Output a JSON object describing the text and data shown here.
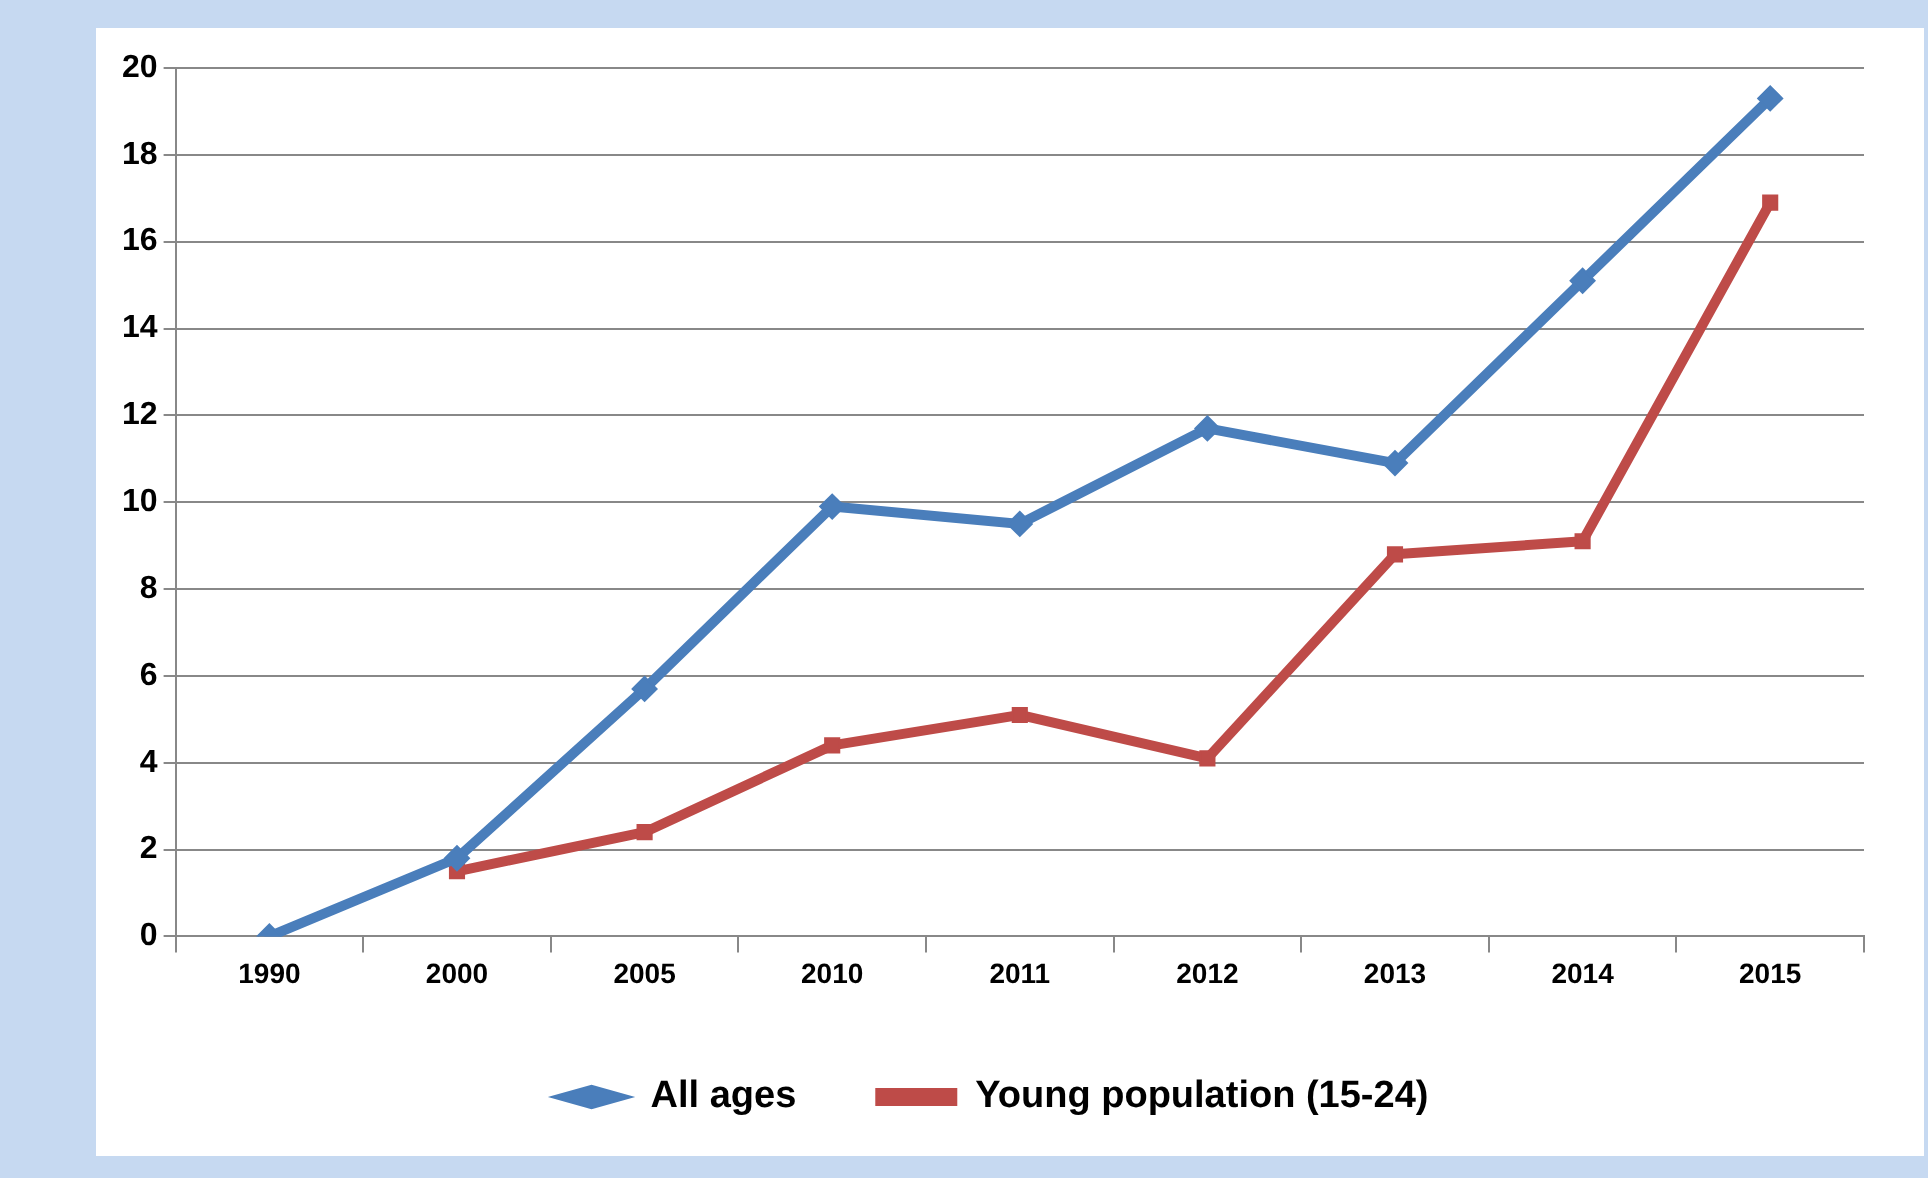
{
  "chart_data": {
    "type": "line",
    "categories": [
      "1990",
      "2000",
      "2005",
      "2010",
      "2011",
      "2012",
      "2013",
      "2014",
      "2015"
    ],
    "series": [
      {
        "name": "All ages",
        "color": "#4a7ebb",
        "marker": "diamond",
        "values": [
          0,
          1.8,
          5.7,
          9.9,
          9.5,
          11.7,
          10.9,
          15.1,
          19.3
        ]
      },
      {
        "name": "Young population (15-24)",
        "color": "#be4b48",
        "marker": "square",
        "values": [
          null,
          1.5,
          2.4,
          4.4,
          5.1,
          4.1,
          8.8,
          9.1,
          16.9
        ]
      }
    ],
    "ylim": [
      0,
      20
    ],
    "yticks": [
      0,
      2,
      4,
      6,
      8,
      10,
      12,
      14,
      16,
      18,
      20
    ],
    "grid": "y",
    "legend": "bottom",
    "line_style": "solid"
  }
}
